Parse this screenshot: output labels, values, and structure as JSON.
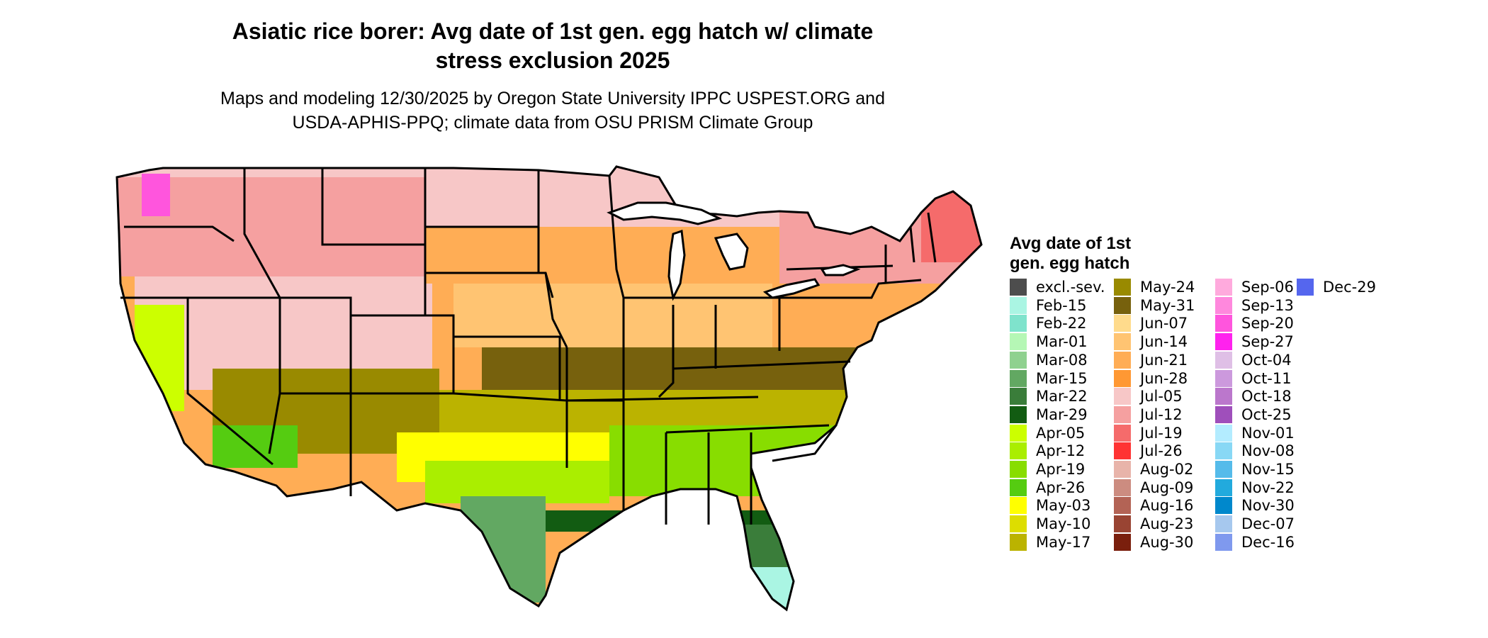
{
  "title_lines": [
    "Asiatic rice borer: Avg date of 1st gen. egg hatch w/ climate",
    "stress exclusion 2025"
  ],
  "subtitle_lines": [
    "Maps and modeling 12/30/2025 by Oregon State University IPPC USPEST.ORG and",
    "USDA-APHIS-PPQ; climate data from OSU PRISM Climate Group"
  ],
  "legend": {
    "title_lines": [
      "Avg date of 1st",
      "gen. egg hatch"
    ],
    "columns": [
      [
        {
          "label": "excl.-sev.",
          "color": "#4d4d4d"
        },
        {
          "label": "Feb-15",
          "color": "#aaf5e3"
        },
        {
          "label": "Feb-22",
          "color": "#7fe3cc"
        },
        {
          "label": "Mar-01",
          "color": "#b5f7b5"
        },
        {
          "label": "Mar-08",
          "color": "#8fd18f"
        },
        {
          "label": "Mar-15",
          "color": "#62a862"
        },
        {
          "label": "Mar-22",
          "color": "#3a7d3a"
        },
        {
          "label": "Mar-29",
          "color": "#125c12"
        },
        {
          "label": "Apr-05",
          "color": "#ccff00"
        },
        {
          "label": "Apr-12",
          "color": "#aaee00"
        },
        {
          "label": "Apr-19",
          "color": "#88dd00"
        },
        {
          "label": "Apr-26",
          "color": "#55cc11"
        },
        {
          "label": "May-03",
          "color": "#ffff00"
        },
        {
          "label": "May-10",
          "color": "#dddd00"
        },
        {
          "label": "May-17",
          "color": "#bbb300"
        }
      ],
      [
        {
          "label": "May-24",
          "color": "#998a00"
        },
        {
          "label": "May-31",
          "color": "#77610d"
        },
        {
          "label": "Jun-07",
          "color": "#ffdb8c"
        },
        {
          "label": "Jun-14",
          "color": "#ffc472"
        },
        {
          "label": "Jun-21",
          "color": "#ffad55"
        },
        {
          "label": "Jun-28",
          "color": "#ff9833"
        },
        {
          "label": "Jul-05",
          "color": "#f7c7c7"
        },
        {
          "label": "Jul-12",
          "color": "#f5a0a0"
        },
        {
          "label": "Jul-19",
          "color": "#f56b6b"
        },
        {
          "label": "Jul-26",
          "color": "#ff3333"
        },
        {
          "label": "Aug-02",
          "color": "#e8b4aa"
        },
        {
          "label": "Aug-09",
          "color": "#cc8c80"
        },
        {
          "label": "Aug-16",
          "color": "#b36355"
        },
        {
          "label": "Aug-23",
          "color": "#994433"
        },
        {
          "label": "Aug-30",
          "color": "#7a1f0d"
        }
      ],
      [
        {
          "label": "Sep-06",
          "color": "#ffaadd"
        },
        {
          "label": "Sep-13",
          "color": "#ff88dd"
        },
        {
          "label": "Sep-20",
          "color": "#ff55dd"
        },
        {
          "label": "Sep-27",
          "color": "#ff22ee"
        },
        {
          "label": "Oct-04",
          "color": "#dfbfe6"
        },
        {
          "label": "Oct-11",
          "color": "#cc99dd"
        },
        {
          "label": "Oct-18",
          "color": "#bb77cc"
        },
        {
          "label": "Oct-25",
          "color": "#9f4fbb"
        },
        {
          "label": "Nov-01",
          "color": "#b3ecff"
        },
        {
          "label": "Nov-08",
          "color": "#88d8f5"
        },
        {
          "label": "Nov-15",
          "color": "#55bbea"
        },
        {
          "label": "Nov-22",
          "color": "#22aadd"
        },
        {
          "label": "Nov-30",
          "color": "#0088cc"
        },
        {
          "label": "Dec-07",
          "color": "#a6c8ee"
        },
        {
          "label": "Dec-16",
          "color": "#7f99ee"
        }
      ],
      [
        {
          "label": "Dec-29",
          "color": "#5566ee"
        }
      ]
    ]
  }
}
